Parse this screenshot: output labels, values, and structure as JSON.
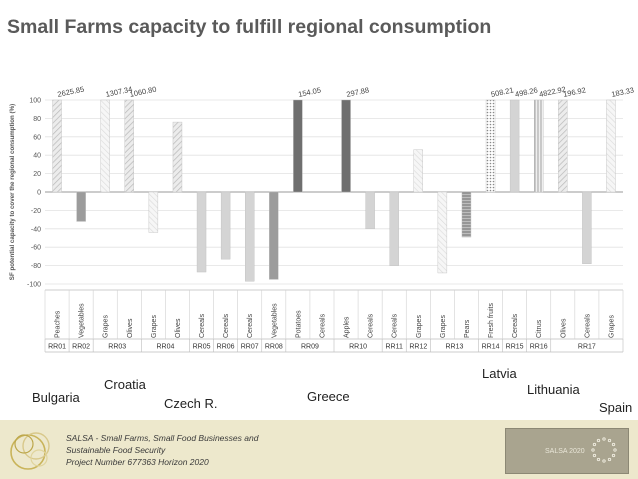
{
  "slide": {
    "title": "Small Farms capacity to fulfill regional consumption"
  },
  "chart_data": {
    "type": "bar",
    "ylabel": "SF potential capacity to cover the regional consumption (%)",
    "ylim": [
      -100,
      100
    ],
    "yticks": [
      100,
      80,
      60,
      40,
      20,
      0,
      -20,
      -40,
      -60,
      -80,
      -100
    ],
    "grid": true,
    "bars": [
      {
        "category": "Peaches",
        "region": "RR01",
        "value": 100,
        "label": "2625.85",
        "style": "hatch-light"
      },
      {
        "category": "Vegetables",
        "region": "RR02",
        "value": -32,
        "label": "",
        "style": "solid-gray"
      },
      {
        "category": "Grapes",
        "region": "RR03",
        "value": 100,
        "label": "1307.34",
        "style": "hatch-faint"
      },
      {
        "category": "Olives",
        "region": "RR03",
        "value": 100,
        "label": "1060.80",
        "style": "hatch-light"
      },
      {
        "category": "Grapes",
        "region": "RR04",
        "value": -44,
        "label": "",
        "style": "hatch-faint"
      },
      {
        "category": "Olives",
        "region": "RR04",
        "value": 76,
        "label": "",
        "style": "hatch-light"
      },
      {
        "category": "Cereals",
        "region": "RR05",
        "value": -87,
        "label": "",
        "style": "light-gray"
      },
      {
        "category": "Cereals",
        "region": "RR06",
        "value": -73,
        "label": "",
        "style": "light-gray"
      },
      {
        "category": "Cereals",
        "region": "RR07",
        "value": -97,
        "label": "",
        "style": "light-gray"
      },
      {
        "category": "Vegetables",
        "region": "RR08",
        "value": -95,
        "label": "",
        "style": "solid-gray"
      },
      {
        "category": "Potatoes",
        "region": "RR09",
        "value": 100,
        "label": "154.05",
        "style": "dark-gray"
      },
      {
        "category": "Cereals",
        "region": "RR09",
        "value": 0,
        "label": "",
        "style": "light-gray"
      },
      {
        "category": "Apples",
        "region": "RR10",
        "value": 100,
        "label": "297.88",
        "style": "dark-gray"
      },
      {
        "category": "Cereals",
        "region": "RR10",
        "value": -40,
        "label": "",
        "style": "light-gray"
      },
      {
        "category": "Cereals",
        "region": "RR11",
        "value": -80,
        "label": "",
        "style": "light-gray"
      },
      {
        "category": "Grapes",
        "region": "RR12",
        "value": 46,
        "label": "",
        "style": "hatch-faint"
      },
      {
        "category": "Grapes",
        "region": "RR13",
        "value": -88,
        "label": "",
        "style": "hatch-faint"
      },
      {
        "category": "Pears",
        "region": "RR13",
        "value": -49,
        "label": "",
        "style": "stripes-dark"
      },
      {
        "category": "Fresh fruits",
        "region": "RR14",
        "value": 100,
        "label": "508.21",
        "style": "dots"
      },
      {
        "category": "Cereals",
        "region": "RR15",
        "value": 100,
        "label": "498.26",
        "style": "light-gray"
      },
      {
        "category": "Citrus",
        "region": "RR16",
        "value": 100,
        "label": "4822.92",
        "style": "vlines"
      },
      {
        "category": "Olives",
        "region": "RR17",
        "value": 100,
        "label": "196.92",
        "style": "hatch-light"
      },
      {
        "category": "Cereals",
        "region": "RR17",
        "value": -78,
        "label": "",
        "style": "light-gray"
      },
      {
        "category": "Grapes",
        "region": "RR17",
        "value": 100,
        "label": "183.33",
        "style": "hatch-faint"
      }
    ],
    "groups": [
      {
        "label": "RR01",
        "start": 0,
        "end": 0
      },
      {
        "label": "RR02",
        "start": 1,
        "end": 1
      },
      {
        "label": "RR03",
        "start": 2,
        "end": 3
      },
      {
        "label": "RR04",
        "start": 4,
        "end": 5
      },
      {
        "label": "RR05",
        "start": 6,
        "end": 6
      },
      {
        "label": "RR06",
        "start": 7,
        "end": 7
      },
      {
        "label": "RR07",
        "start": 8,
        "end": 8
      },
      {
        "label": "RR08",
        "start": 9,
        "end": 9
      },
      {
        "label": "RR09",
        "start": 10,
        "end": 11
      },
      {
        "label": "RR10",
        "start": 12,
        "end": 13
      },
      {
        "label": "RR11",
        "start": 14,
        "end": 14
      },
      {
        "label": "RR12",
        "start": 15,
        "end": 15
      },
      {
        "label": "RR13",
        "start": 16,
        "end": 17
      },
      {
        "label": "RR14",
        "start": 18,
        "end": 18
      },
      {
        "label": "RR15",
        "start": 19,
        "end": 19
      },
      {
        "label": "RR16",
        "start": 20,
        "end": 20
      },
      {
        "label": "RR17",
        "start": 21,
        "end": 23
      }
    ]
  },
  "countries": {
    "bulgaria": "Bulgaria",
    "croatia": "Croatia",
    "czech": "Czech R.",
    "greece": "Greece",
    "latvia": "Latvia",
    "lithuania": "Lithuania",
    "spain": "Spain"
  },
  "footer": {
    "line1": "SALSA - Small Farms, Small Food Businesses and",
    "line2": "Sustainable Food Security",
    "line3": "Project Number 677363 Horizon 2020",
    "logo_text": "SALSA 2020"
  }
}
